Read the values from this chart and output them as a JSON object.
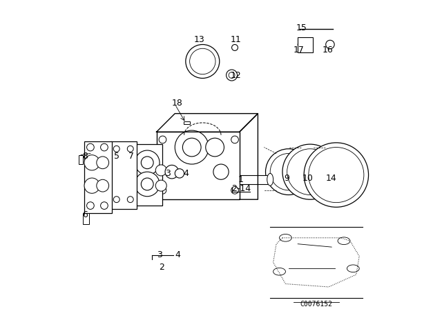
{
  "background_color": "#ffffff",
  "figure_width": 6.4,
  "figure_height": 4.48,
  "dpi": 100,
  "line_color": "#000000",
  "text_color": "#000000",
  "label_fontsize": 9,
  "code_text": "C0076152"
}
